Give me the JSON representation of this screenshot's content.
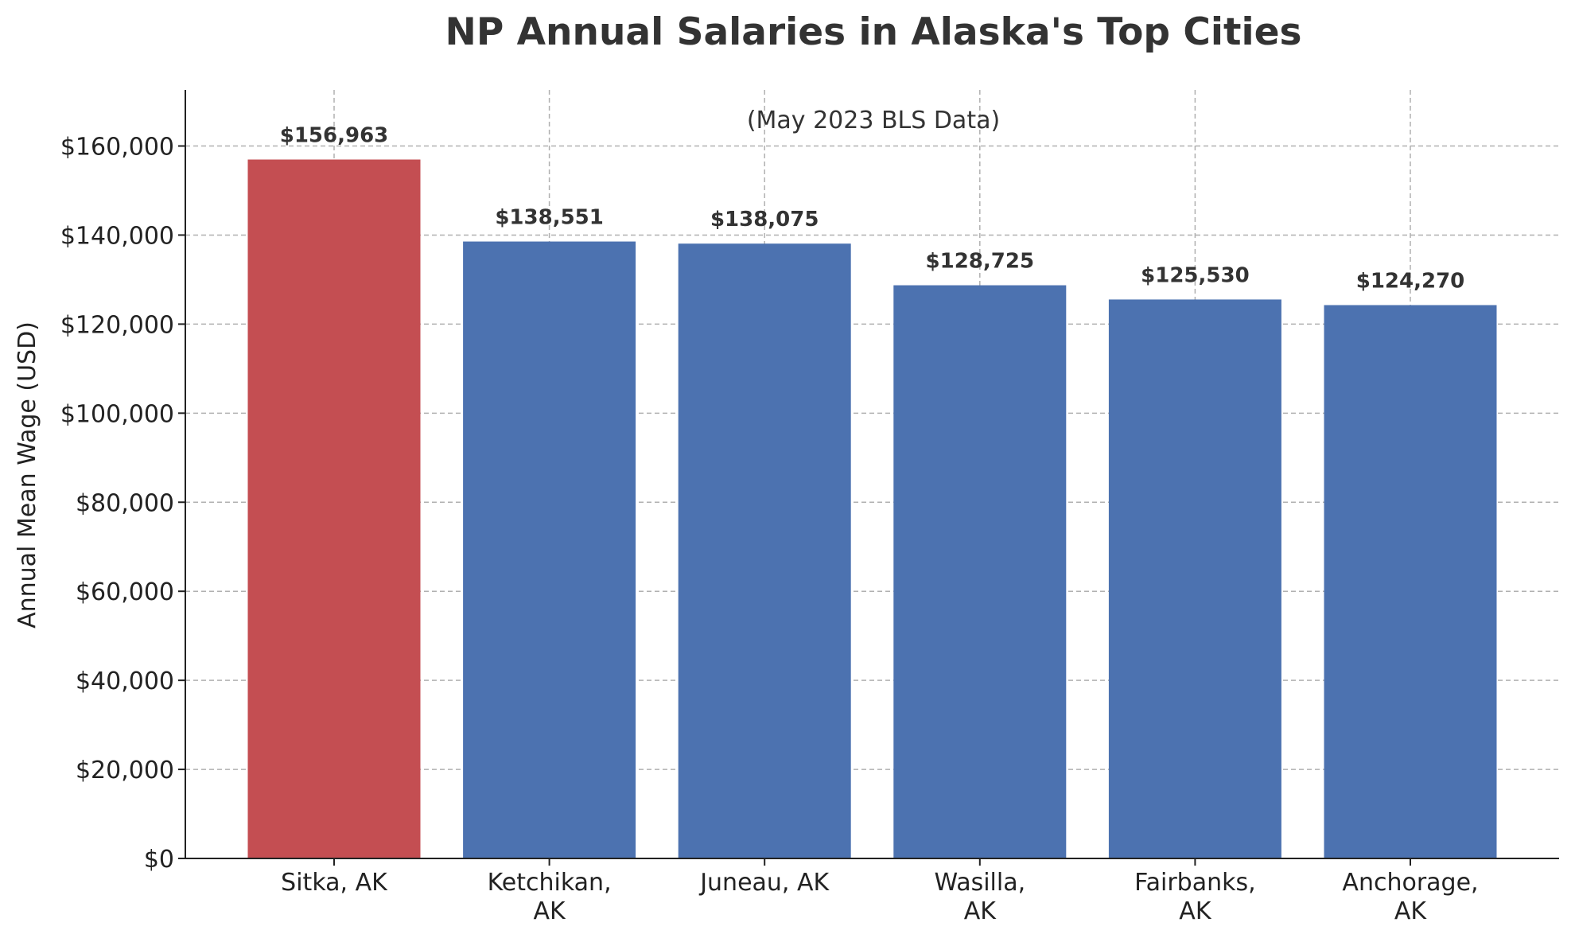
{
  "chart_data": {
    "type": "bar",
    "title": "NP Annual Salaries in Alaska's Top Cities",
    "subtitle": "(May 2023 BLS Data)",
    "xlabel": "",
    "ylabel": "Annual Mean Wage (USD)",
    "categories": [
      [
        "Sitka, AK"
      ],
      [
        "Ketchikan,",
        "AK"
      ],
      [
        "Juneau, AK"
      ],
      [
        "Wasilla,",
        "AK"
      ],
      [
        "Fairbanks,",
        "AK"
      ],
      [
        "Anchorage,",
        "AK"
      ]
    ],
    "values": [
      156963,
      138551,
      138075,
      128725,
      125530,
      124270
    ],
    "value_labels": [
      "$156,963",
      "$138,551",
      "$138,075",
      "$128,725",
      "$125,530",
      "$124,270"
    ],
    "bar_colors": [
      "#c44e52",
      "#4c72b0",
      "#4c72b0",
      "#4c72b0",
      "#4c72b0",
      "#4c72b0"
    ],
    "ylim": [
      0,
      172600
    ],
    "yticks": [
      0,
      20000,
      40000,
      60000,
      80000,
      100000,
      120000,
      140000,
      160000
    ],
    "ytick_labels": [
      "$0",
      "$20,000",
      "$40,000",
      "$60,000",
      "$80,000",
      "$100,000",
      "$120,000",
      "$140,000",
      "$160,000"
    ],
    "grid": true,
    "legend": "none"
  }
}
